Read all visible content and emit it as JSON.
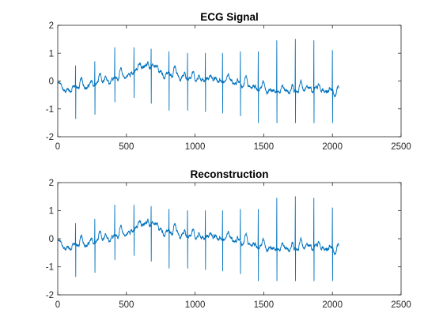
{
  "chart_data": [
    {
      "type": "line",
      "title": "ECG Signal",
      "xlabel": "",
      "ylabel": "",
      "xlim": [
        0,
        2500
      ],
      "ylim": [
        -2,
        2
      ],
      "xticks": [
        0,
        500,
        1000,
        1500,
        2000,
        2500
      ],
      "yticks": [
        -2,
        -1,
        0,
        1,
        2
      ],
      "grid": false,
      "color": "#0072bd",
      "n_samples": 2048,
      "baseline": [
        [
          0,
          -0.1
        ],
        [
          60,
          -0.35
        ],
        [
          150,
          -0.2
        ],
        [
          250,
          -0.15
        ],
        [
          350,
          0.0
        ],
        [
          450,
          0.15
        ],
        [
          520,
          0.2
        ],
        [
          600,
          0.45
        ],
        [
          650,
          0.6
        ],
        [
          700,
          0.4
        ],
        [
          780,
          0.2
        ],
        [
          850,
          0.25
        ],
        [
          900,
          0.15
        ],
        [
          1000,
          0.1
        ],
        [
          1100,
          0.05
        ],
        [
          1200,
          -0.05
        ],
        [
          1300,
          -0.1
        ],
        [
          1400,
          -0.2
        ],
        [
          1500,
          -0.3
        ],
        [
          1600,
          -0.35
        ],
        [
          1700,
          -0.35
        ],
        [
          1800,
          -0.3
        ],
        [
          1900,
          -0.25
        ],
        [
          1950,
          -0.35
        ],
        [
          2048,
          -0.45
        ]
      ],
      "beats": [
        [
          130,
          0.55,
          -1.35
        ],
        [
          270,
          0.7,
          -1.2
        ],
        [
          415,
          1.2,
          -0.75
        ],
        [
          555,
          1.2,
          -0.6
        ],
        [
          680,
          1.15,
          -0.8
        ],
        [
          810,
          1.05,
          -1.05
        ],
        [
          945,
          1.0,
          -1.05
        ],
        [
          1075,
          1.0,
          -1.1
        ],
        [
          1200,
          1.0,
          -1.15
        ],
        [
          1330,
          1.05,
          -1.25
        ],
        [
          1460,
          1.05,
          -1.5
        ],
        [
          1595,
          1.45,
          -1.5
        ],
        [
          1730,
          1.5,
          -1.5
        ],
        [
          1865,
          1.45,
          -1.5
        ],
        [
          2000,
          1.1,
          -1.5
        ]
      ]
    },
    {
      "type": "line",
      "title": "Reconstruction",
      "xlabel": "",
      "ylabel": "",
      "xlim": [
        0,
        2500
      ],
      "ylim": [
        -2,
        2
      ],
      "xticks": [
        0,
        500,
        1000,
        1500,
        2000,
        2500
      ],
      "yticks": [
        -2,
        -1,
        0,
        1,
        2
      ],
      "grid": false,
      "color": "#0072bd",
      "n_samples": 2048,
      "baseline": [
        [
          0,
          -0.1
        ],
        [
          60,
          -0.35
        ],
        [
          150,
          -0.2
        ],
        [
          250,
          -0.15
        ],
        [
          350,
          0.0
        ],
        [
          450,
          0.15
        ],
        [
          520,
          0.2
        ],
        [
          600,
          0.45
        ],
        [
          650,
          0.6
        ],
        [
          700,
          0.4
        ],
        [
          780,
          0.2
        ],
        [
          850,
          0.25
        ],
        [
          900,
          0.15
        ],
        [
          1000,
          0.1
        ],
        [
          1100,
          0.05
        ],
        [
          1200,
          -0.05
        ],
        [
          1300,
          -0.1
        ],
        [
          1400,
          -0.2
        ],
        [
          1500,
          -0.3
        ],
        [
          1600,
          -0.35
        ],
        [
          1700,
          -0.35
        ],
        [
          1800,
          -0.3
        ],
        [
          1900,
          -0.25
        ],
        [
          1950,
          -0.35
        ],
        [
          2048,
          -0.45
        ]
      ],
      "beats": [
        [
          130,
          0.55,
          -1.35
        ],
        [
          270,
          0.7,
          -1.2
        ],
        [
          415,
          1.2,
          -0.75
        ],
        [
          555,
          1.2,
          -0.6
        ],
        [
          680,
          1.15,
          -0.8
        ],
        [
          810,
          1.05,
          -1.05
        ],
        [
          945,
          1.0,
          -1.05
        ],
        [
          1075,
          1.0,
          -1.1
        ],
        [
          1200,
          1.0,
          -1.15
        ],
        [
          1330,
          1.05,
          -1.25
        ],
        [
          1460,
          1.05,
          -1.5
        ],
        [
          1595,
          1.45,
          -1.5
        ],
        [
          1730,
          1.5,
          -1.5
        ],
        [
          1865,
          1.45,
          -1.5
        ],
        [
          2000,
          1.1,
          -1.5
        ]
      ]
    }
  ]
}
